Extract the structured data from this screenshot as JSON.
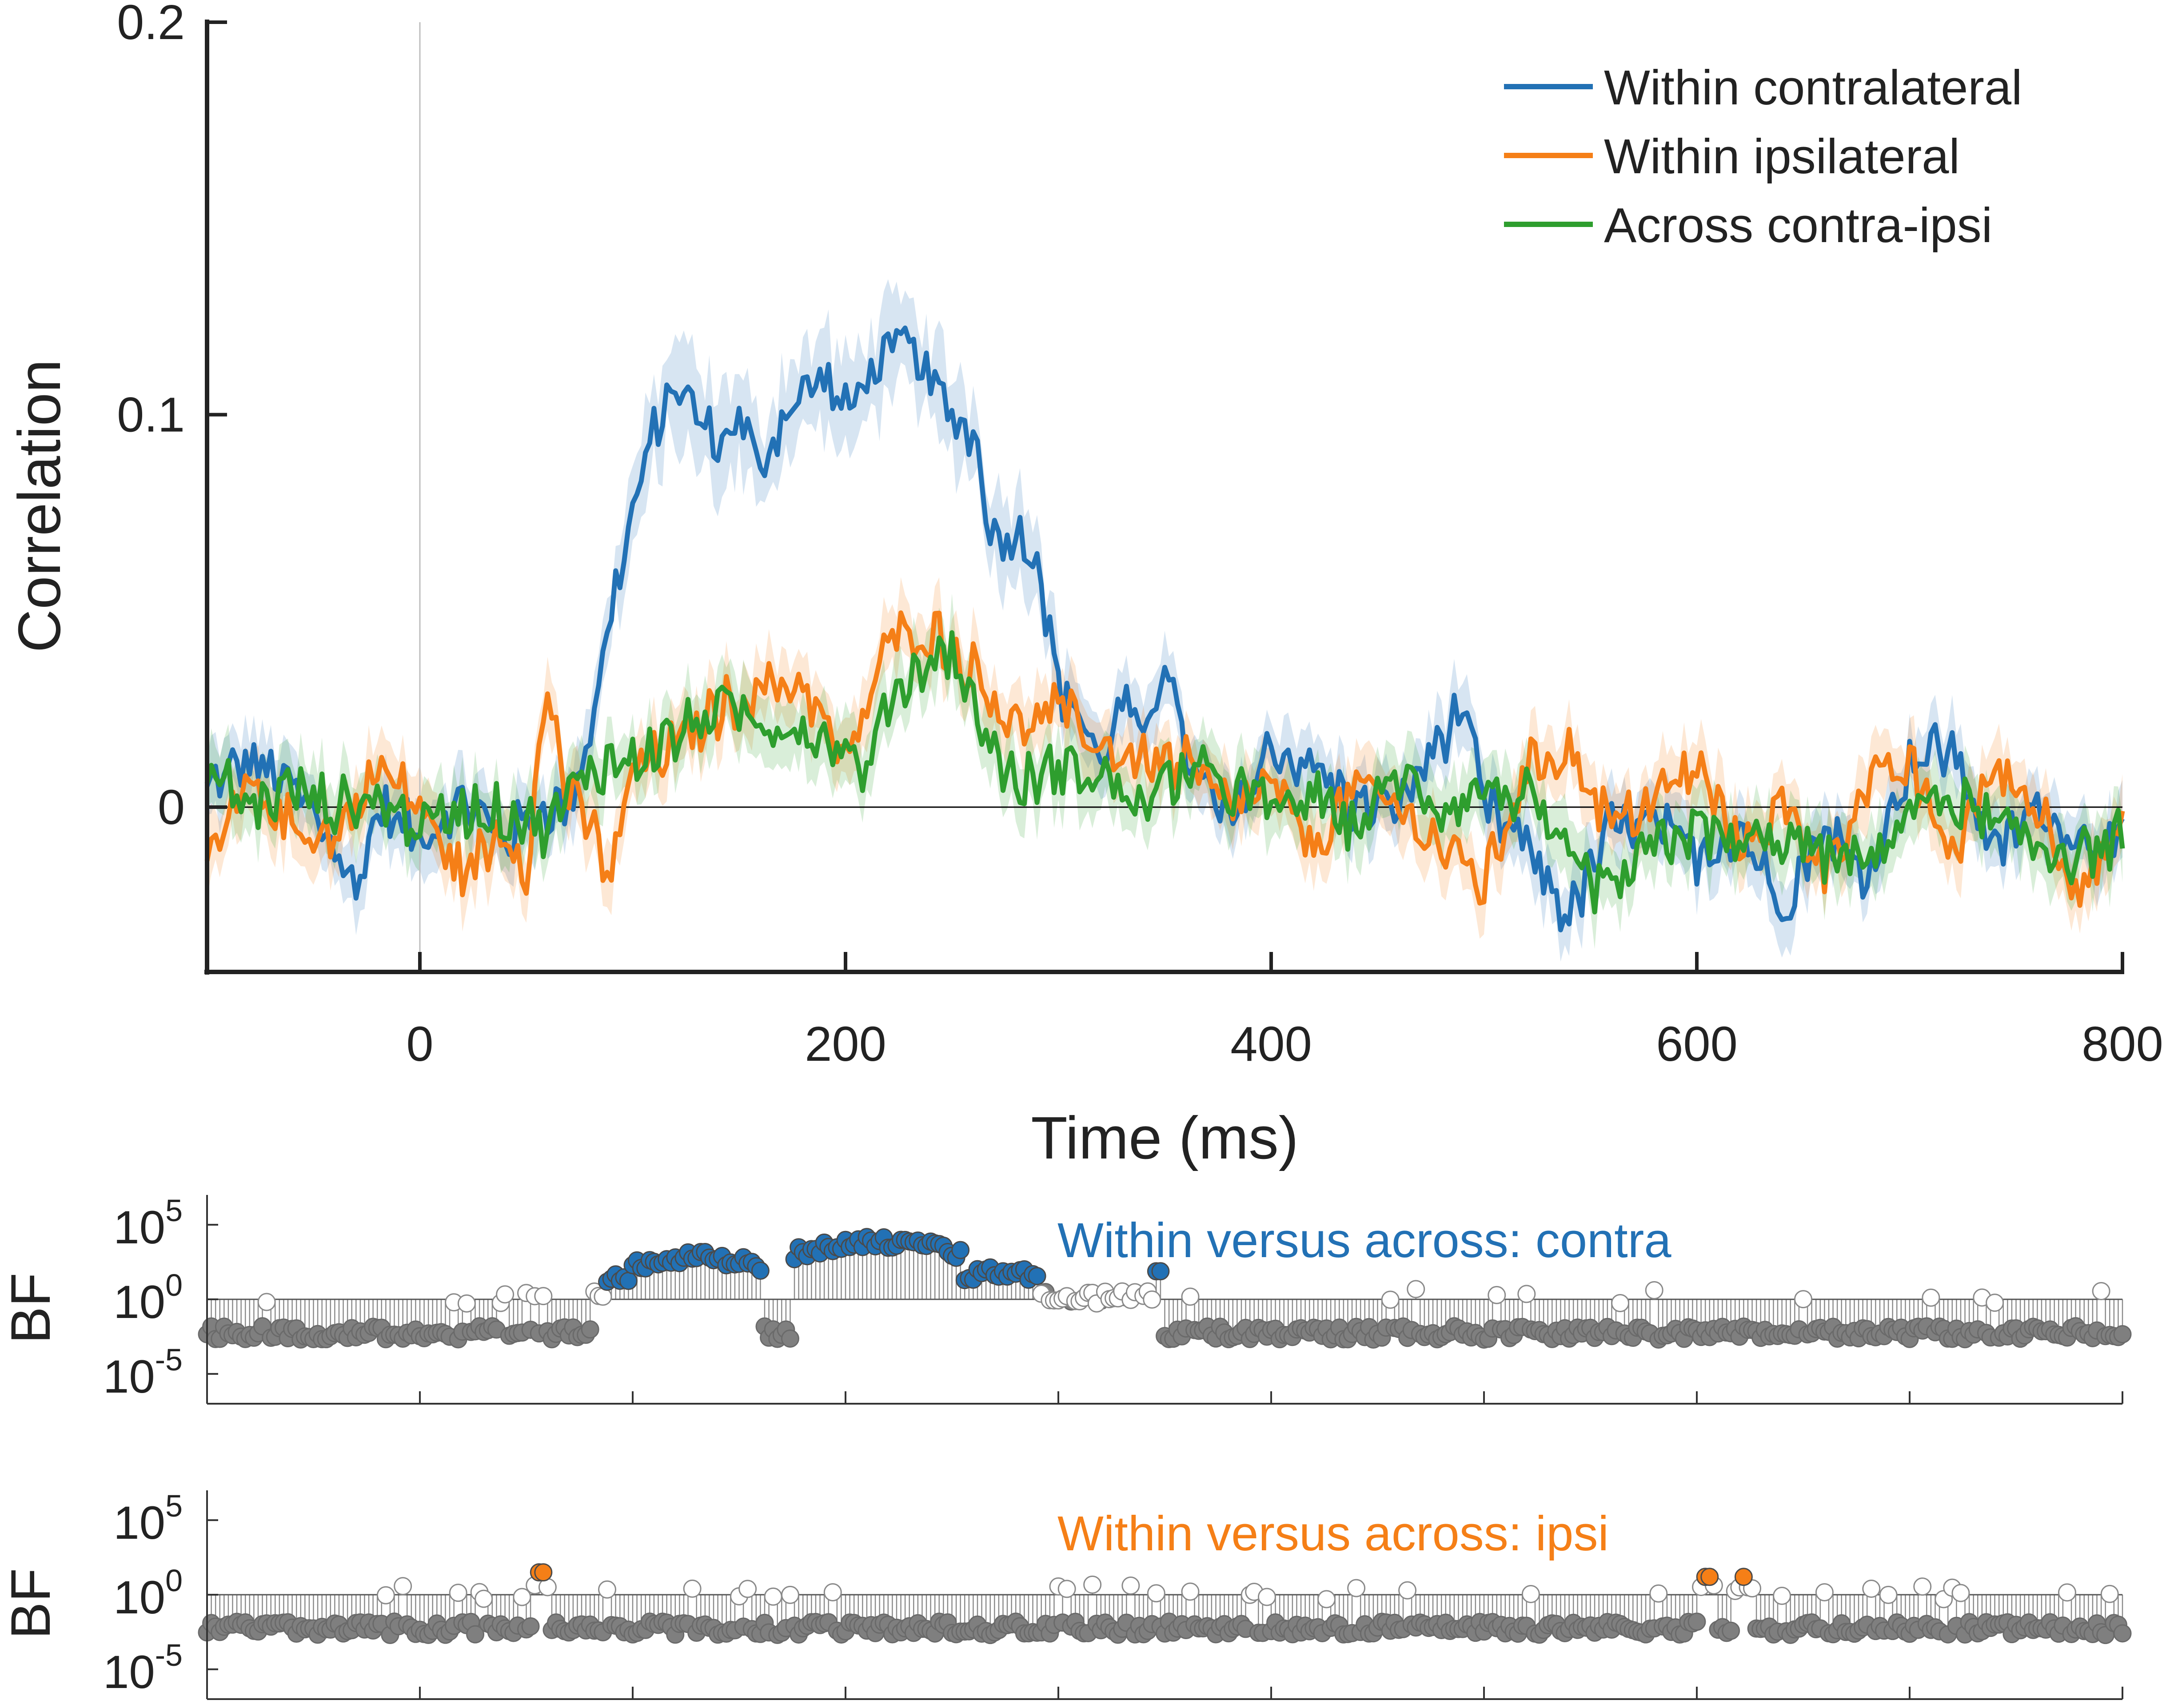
{
  "chart_data": [
    {
      "type": "line",
      "title": "",
      "xlabel": "Time (ms)",
      "ylabel": "Correlation",
      "xlim": [
        -100,
        800
      ],
      "ylim": [
        -0.042,
        0.2
      ],
      "xticks": [
        0,
        200,
        400,
        600,
        800
      ],
      "xtick_labels": [
        "0",
        "200",
        "400",
        "600",
        "800"
      ],
      "yticks": [
        0,
        0.1,
        0.2
      ],
      "ytick_labels": [
        "0",
        "0.1",
        "0.2"
      ],
      "grid": false,
      "legend": "top-right",
      "shaded_error": true,
      "reference_lines": {
        "x": 0,
        "y": 0
      },
      "series": [
        {
          "name": "Within contralateral",
          "color": "#2271B5",
          "x": [
            -100,
            -80,
            -60,
            -40,
            -30,
            -20,
            0,
            20,
            40,
            60,
            70,
            80,
            90,
            100,
            110,
            120,
            130,
            140,
            150,
            160,
            170,
            180,
            190,
            200,
            210,
            220,
            230,
            240,
            250,
            260,
            270,
            280,
            290,
            300,
            310,
            320,
            330,
            340,
            350,
            360,
            380,
            400,
            420,
            440,
            460,
            480,
            490,
            500,
            520,
            540,
            560,
            580,
            600,
            620,
            640,
            660,
            680,
            700,
            720,
            740,
            760,
            780,
            800
          ],
          "y": [
            0.005,
            0.012,
            0.005,
            -0.01,
            -0.022,
            0.0,
            -0.008,
            0.002,
            -0.008,
            0.0,
            0.0,
            0.02,
            0.05,
            0.075,
            0.095,
            0.108,
            0.1,
            0.092,
            0.1,
            0.085,
            0.1,
            0.105,
            0.11,
            0.1,
            0.11,
            0.115,
            0.118,
            0.108,
            0.1,
            0.095,
            0.068,
            0.07,
            0.065,
            0.03,
            0.025,
            0.01,
            0.028,
            0.015,
            0.04,
            0.012,
            -0.005,
            0.015,
            0.01,
            0.0,
            0.0,
            0.018,
            0.025,
            0.0,
            -0.01,
            -0.028,
            -0.005,
            -0.005,
            -0.012,
            -0.005,
            -0.025,
            -0.005,
            -0.018,
            0.012,
            0.015,
            -0.012,
            0.0,
            -0.008,
            -0.01
          ]
        },
        {
          "name": "Within ipsilateral",
          "color": "#F57F17",
          "x": [
            -100,
            -80,
            -60,
            -40,
            -20,
            0,
            20,
            40,
            50,
            60,
            70,
            80,
            90,
            100,
            120,
            140,
            160,
            180,
            200,
            220,
            240,
            260,
            280,
            300,
            320,
            340,
            360,
            380,
            400,
            420,
            440,
            460,
            480,
            500,
            520,
            540,
            560,
            580,
            600,
            620,
            640,
            660,
            680,
            700,
            720,
            740,
            760,
            780,
            800
          ],
          "y": [
            -0.015,
            0.005,
            -0.005,
            -0.008,
            0.01,
            0.0,
            -0.018,
            -0.005,
            -0.015,
            0.03,
            0.002,
            -0.005,
            -0.018,
            0.01,
            0.015,
            0.025,
            0.03,
            0.032,
            0.01,
            0.042,
            0.045,
            0.035,
            0.02,
            0.025,
            0.015,
            0.012,
            0.01,
            0.0,
            0.005,
            -0.01,
            0.005,
            0.0,
            -0.01,
            -0.02,
            0.01,
            0.015,
            -0.005,
            0.002,
            0.01,
            -0.01,
            0.0,
            -0.015,
            0.005,
            0.01,
            -0.012,
            0.01,
            0.0,
            -0.02,
            -0.008
          ]
        },
        {
          "name": "Across contra-ipsi",
          "color": "#2E9E2E",
          "x": [
            -100,
            -80,
            -60,
            -40,
            -20,
            0,
            20,
            40,
            60,
            80,
            100,
            120,
            140,
            160,
            180,
            200,
            210,
            220,
            240,
            250,
            260,
            280,
            300,
            320,
            340,
            360,
            380,
            400,
            420,
            440,
            460,
            480,
            500,
            520,
            540,
            560,
            580,
            600,
            620,
            640,
            660,
            680,
            700,
            720,
            740,
            760,
            780,
            800
          ],
          "y": [
            0.01,
            0.0,
            0.005,
            0.0,
            0.002,
            -0.005,
            0.0,
            -0.002,
            -0.005,
            0.01,
            0.012,
            0.018,
            0.025,
            0.022,
            0.02,
            0.015,
            0.008,
            0.028,
            0.038,
            0.04,
            0.025,
            0.005,
            0.01,
            0.008,
            0.0,
            0.01,
            0.005,
            0.0,
            0.002,
            -0.005,
            0.008,
            0.0,
            0.005,
            0.002,
            -0.015,
            -0.022,
            -0.01,
            -0.005,
            -0.01,
            -0.008,
            -0.012,
            -0.015,
            0.0,
            0.002,
            -0.005,
            -0.01,
            -0.012,
            -0.008
          ]
        }
      ]
    },
    {
      "type": "scatter",
      "ylabel": "BF",
      "annotation": "Within versus across: contra",
      "annotation_color": "#2271B5",
      "yscale": "log",
      "ylim": [
        1e-07,
        10000000.0
      ],
      "ytick_labels": [
        {
          "base": "10",
          "exp": "5"
        },
        {
          "base": "10",
          "exp": "0"
        },
        {
          "base": "10",
          "exp": "-5"
        }
      ],
      "xlim": [
        -100,
        800
      ],
      "reference_line": 1,
      "fill_colors": {
        "above_threshold": "#2271B5",
        "inconclusive": "#FFFFFF",
        "below_threshold": "#7F7F7F"
      },
      "bump_segments": [
        {
          "from": 88,
          "to": 100,
          "peak_log10": 1.5,
          "state": "blue"
        },
        {
          "from": 100,
          "to": 160,
          "peak_log10": 2.8,
          "state": "blue"
        },
        {
          "from": 175,
          "to": 255,
          "peak_log10": 3.8,
          "state": "blue"
        },
        {
          "from": 255,
          "to": 290,
          "peak_log10": 1.8,
          "state": "blue"
        },
        {
          "from": 344,
          "to": 348,
          "peak_log10": 2.0,
          "state": "blue"
        }
      ]
    },
    {
      "type": "scatter",
      "ylabel": "BF",
      "annotation": "Within versus across: ipsi",
      "annotation_color": "#F57F17",
      "yscale": "log",
      "ylim": [
        1e-07,
        10000000.0
      ],
      "ytick_labels": [
        {
          "base": "10",
          "exp": "5"
        },
        {
          "base": "10",
          "exp": "0"
        },
        {
          "base": "10",
          "exp": "-5"
        }
      ],
      "xlim": [
        -100,
        800
      ],
      "reference_line": 1,
      "fill_colors": {
        "above_threshold": "#F57F17",
        "inconclusive": "#FFFFFF",
        "below_threshold": "#7F7F7F"
      },
      "highlight_points": [
        {
          "x": 57,
          "log10_bf": 1.5
        },
        {
          "x": 605,
          "log10_bf": 1.2
        },
        {
          "x": 622,
          "log10_bf": 1.2
        }
      ]
    }
  ]
}
